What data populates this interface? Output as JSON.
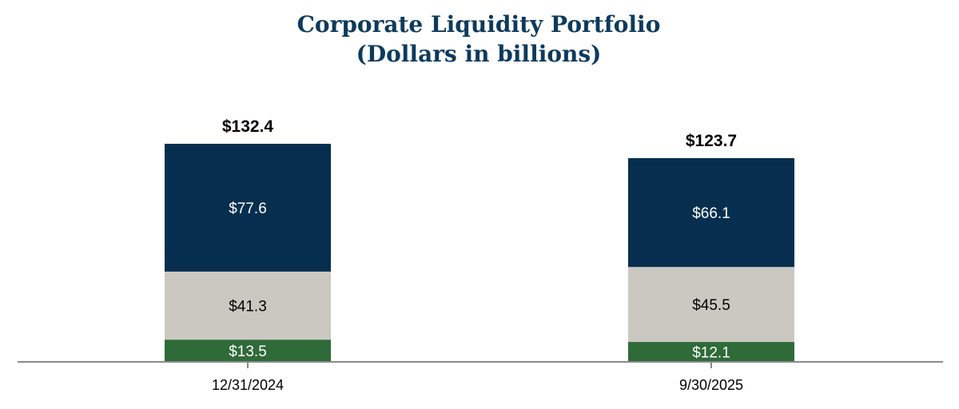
{
  "chart_data": {
    "type": "bar",
    "stacked": true,
    "title": "Corporate Liquidity Portfolio",
    "subtitle": "(Dollars in billions)",
    "categories": [
      "12/31/2024",
      "9/30/2025"
    ],
    "totals": [
      "$132.4",
      "$123.7"
    ],
    "total_values": [
      132.4,
      123.7
    ],
    "series": [
      {
        "values": [
          13.5,
          12.1
        ],
        "labels": [
          "$13.5",
          "$12.1"
        ],
        "color": "#2e6b38",
        "label_color": "#ffffff"
      },
      {
        "values": [
          41.3,
          45.5
        ],
        "labels": [
          "$41.3",
          "$45.5"
        ],
        "color": "#cbc8c2",
        "label_color": "#000000"
      },
      {
        "values": [
          77.6,
          66.1
        ],
        "labels": [
          "$77.6",
          "$66.1"
        ],
        "color": "#062f4f",
        "label_color": "#ffffff"
      }
    ],
    "ylim": [
      0,
      132.4
    ],
    "grid": false,
    "legend": "none",
    "colors": {
      "title": "#0d3a5c",
      "axis": "#8a8a8a"
    }
  }
}
